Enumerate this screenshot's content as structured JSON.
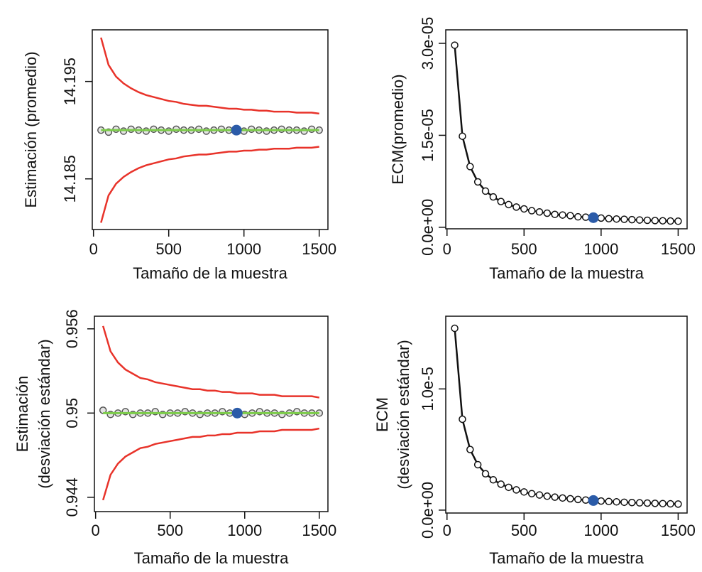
{
  "chart_data": [
    {
      "type": "line",
      "x_label": "Tamaño de la muestra",
      "y_label": [
        "Estimación (promedio)"
      ],
      "x": [
        50,
        100,
        150,
        200,
        250,
        300,
        350,
        400,
        450,
        500,
        550,
        600,
        650,
        700,
        750,
        800,
        850,
        900,
        950,
        1000,
        1050,
        1100,
        1150,
        1200,
        1250,
        1300,
        1350,
        1400,
        1450,
        1500
      ],
      "xlim": [
        -8,
        1558
      ],
      "xticks": [
        0,
        500,
        1000,
        1500
      ],
      "ylim": [
        14.1798,
        14.2003
      ],
      "yticks": [
        14.185,
        14.195
      ],
      "series": [
        {
          "color": "#e8332a",
          "marker": false,
          "values": [
            14.1995,
            14.1967,
            14.1955,
            14.1948,
            14.1943,
            14.1939,
            14.1936,
            14.1934,
            14.1932,
            14.193,
            14.1929,
            14.1927,
            14.1926,
            14.1925,
            14.1925,
            14.1924,
            14.1923,
            14.1922,
            14.1922,
            14.1921,
            14.1921,
            14.192,
            14.192,
            14.1919,
            14.1919,
            14.1919,
            14.1918,
            14.1918,
            14.1918,
            14.1917
          ]
        },
        {
          "color": "#e8332a",
          "marker": false,
          "values": [
            14.1805,
            14.1833,
            14.1845,
            14.1852,
            14.1857,
            14.1861,
            14.1864,
            14.1866,
            14.1868,
            14.187,
            14.1871,
            14.1873,
            14.1874,
            14.1875,
            14.1875,
            14.1876,
            14.1877,
            14.1878,
            14.1878,
            14.1879,
            14.1879,
            14.188,
            14.188,
            14.1881,
            14.1881,
            14.1881,
            14.1882,
            14.1882,
            14.1882,
            14.1883
          ]
        },
        {
          "color": "#555555",
          "marker": true,
          "values": [
            14.19,
            14.1898,
            14.1901,
            14.1899,
            14.1901,
            14.19,
            14.1899,
            14.1901,
            14.19,
            14.1899,
            14.1901,
            14.19,
            14.19,
            14.1901,
            14.1899,
            14.19,
            14.1901,
            14.19,
            14.19,
            14.1899,
            14.1901,
            14.19,
            14.1899,
            14.19,
            14.1901,
            14.19,
            14.19,
            14.1899,
            14.1901,
            14.19
          ]
        }
      ],
      "reference": {
        "value": 14.19,
        "color": "#7ccc4a"
      },
      "highlight": {
        "x": 950,
        "y": 14.19,
        "color": "#2b5ba8"
      }
    },
    {
      "type": "line",
      "x_label": "Tamaño de la muestra",
      "y_label": [
        "ECM(promedio)"
      ],
      "x": [
        50,
        100,
        150,
        200,
        250,
        300,
        350,
        400,
        450,
        500,
        550,
        600,
        650,
        700,
        750,
        800,
        850,
        900,
        950,
        1000,
        1050,
        1100,
        1150,
        1200,
        1250,
        1300,
        1350,
        1400,
        1450,
        1500
      ],
      "xlim": [
        -8,
        1558
      ],
      "xticks": [
        0,
        500,
        1000,
        1500
      ],
      "ylim": [
        -2.5e-07,
        3.22e-05
      ],
      "yticks": [
        {
          "value": 0,
          "label": "0.0e+00"
        },
        {
          "value": 1.5e-05,
          "label": "1.5e-05"
        },
        {
          "value": 3e-05,
          "label": "3.0e-05"
        }
      ],
      "series": [
        {
          "color": "#111111",
          "marker": true,
          "values": [
            2.97e-05,
            1.485e-05,
            9.9e-06,
            7.4e-06,
            5.9e-06,
            4.95e-06,
            4.2e-06,
            3.7e-06,
            3.3e-06,
            3e-06,
            2.7e-06,
            2.5e-06,
            2.3e-06,
            2.1e-06,
            2e-06,
            1.9e-06,
            1.7e-06,
            1.65e-06,
            1.56e-06,
            1.5e-06,
            1.4e-06,
            1.35e-06,
            1.3e-06,
            1.24e-06,
            1.19e-06,
            1.14e-06,
            1.1e-06,
            1.06e-06,
            1.02e-06,
            9.9e-07
          ]
        }
      ],
      "highlight": {
        "x": 950,
        "y": 1.56e-06,
        "color": "#2b5ba8"
      }
    },
    {
      "type": "line",
      "x_label": "Tamaño de la muestra",
      "y_label": [
        "Estimación",
        "(desviación estándar)"
      ],
      "x": [
        50,
        100,
        150,
        200,
        250,
        300,
        350,
        400,
        450,
        500,
        550,
        600,
        650,
        700,
        750,
        800,
        850,
        900,
        950,
        1000,
        1050,
        1100,
        1150,
        1200,
        1250,
        1300,
        1350,
        1400,
        1450,
        1500
      ],
      "xlim": [
        -8,
        1558
      ],
      "xticks": [
        0,
        500,
        1000,
        1500
      ],
      "ylim": [
        0.94298,
        0.9569
      ],
      "yticks": [
        0.944,
        0.95,
        0.956
      ],
      "series": [
        {
          "color": "#e8332a",
          "marker": false,
          "values": [
            0.9562,
            0.9544,
            0.9536,
            0.9531,
            0.9528,
            0.9525,
            0.9524,
            0.9522,
            0.9521,
            0.952,
            0.9519,
            0.9518,
            0.9517,
            0.9517,
            0.9516,
            0.9516,
            0.9515,
            0.9515,
            0.9514,
            0.9514,
            0.9514,
            0.9513,
            0.9513,
            0.9513,
            0.9512,
            0.9512,
            0.9512,
            0.9512,
            0.9512,
            0.9511
          ]
        },
        {
          "color": "#e8332a",
          "marker": false,
          "values": [
            0.9438,
            0.9456,
            0.9464,
            0.9469,
            0.9472,
            0.9475,
            0.9476,
            0.9478,
            0.9479,
            0.948,
            0.9481,
            0.9482,
            0.9483,
            0.9483,
            0.9484,
            0.9484,
            0.9485,
            0.9485,
            0.9486,
            0.9486,
            0.9486,
            0.9487,
            0.9487,
            0.9487,
            0.9488,
            0.9488,
            0.9488,
            0.9488,
            0.9488,
            0.9489
          ]
        },
        {
          "color": "#555555",
          "marker": true,
          "values": [
            0.9502,
            0.9499,
            0.95,
            0.9501,
            0.9499,
            0.95,
            0.95,
            0.9501,
            0.9499,
            0.95,
            0.95,
            0.9501,
            0.95,
            0.9499,
            0.95,
            0.95,
            0.9501,
            0.95,
            0.95,
            0.9499,
            0.95,
            0.9501,
            0.95,
            0.95,
            0.9499,
            0.95,
            0.9501,
            0.95,
            0.95,
            0.95
          ]
        }
      ],
      "reference": {
        "value": 0.95,
        "color": "#7ccc4a"
      },
      "highlight": {
        "x": 950,
        "y": 0.95,
        "color": "#2b5ba8"
      }
    },
    {
      "type": "line",
      "x_label": "Tamaño de la muestra",
      "y_label": [
        "ECM",
        "(desviación estándar)"
      ],
      "x": [
        50,
        100,
        150,
        200,
        250,
        300,
        350,
        400,
        450,
        500,
        550,
        600,
        650,
        700,
        750,
        800,
        850,
        900,
        950,
        1000,
        1050,
        1100,
        1150,
        1200,
        1250,
        1300,
        1350,
        1400,
        1450,
        1500
      ],
      "xlim": [
        -8,
        1558
      ],
      "xticks": [
        0,
        500,
        1000,
        1500
      ],
      "ylim": [
        -2.4e-07,
        1.6e-05
      ],
      "yticks": [
        {
          "value": 0,
          "label": "0.0e+00"
        },
        {
          "value": 1e-05,
          "label": "1.0e-5"
        }
      ],
      "series": [
        {
          "color": "#111111",
          "marker": true,
          "values": [
            1.5e-05,
            7.5e-06,
            5e-06,
            3.75e-06,
            3e-06,
            2.5e-06,
            2.14e-06,
            1.88e-06,
            1.67e-06,
            1.5e-06,
            1.36e-06,
            1.25e-06,
            1.15e-06,
            1.07e-06,
            1e-06,
            9.4e-07,
            8.8e-07,
            8.3e-07,
            7.9e-07,
            7.5e-07,
            7.1e-07,
            6.8e-07,
            6.5e-07,
            6.25e-07,
            6e-07,
            5.8e-07,
            5.6e-07,
            5.4e-07,
            5.2e-07,
            5e-07
          ]
        }
      ],
      "highlight": {
        "x": 950,
        "y": 7.9e-07,
        "color": "#2b5ba8"
      }
    }
  ]
}
